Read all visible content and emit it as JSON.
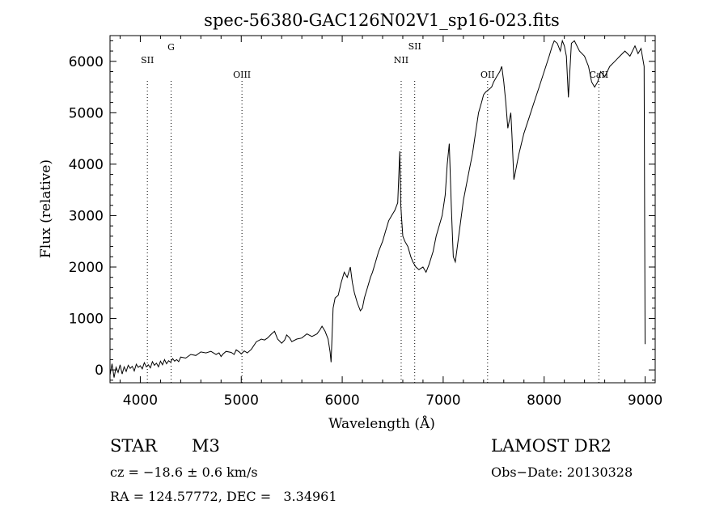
{
  "chart_data": {
    "type": "line",
    "title": "spec-56380-GAC126N02V1_sp16-023.fits",
    "xlabel": "Wavelength (Å)",
    "ylabel": "Flux (relative)",
    "xlim": [
      3700,
      9100
    ],
    "ylim": [
      -250,
      6500
    ],
    "xticks": [
      4000,
      5000,
      6000,
      7000,
      8000,
      9000
    ],
    "yticks": [
      0,
      1000,
      2000,
      3000,
      4000,
      5000,
      6000
    ],
    "grid": false,
    "line_markers": [
      {
        "label": "SII",
        "x": 4070
      },
      {
        "label": "G",
        "x": 4305
      },
      {
        "label": "OIII",
        "x": 5007
      },
      {
        "label": "NII",
        "x": 6584
      },
      {
        "label": "SII",
        "x": 6718
      },
      {
        "label": "OII",
        "x": 7440
      },
      {
        "label": "CaII",
        "x": 8542
      }
    ],
    "series": [
      {
        "x": [
          3700,
          3720,
          3740,
          3760,
          3780,
          3800,
          3820,
          3840,
          3860,
          3880,
          3900,
          3920,
          3940,
          3960,
          3980,
          4000,
          4020,
          4040,
          4060,
          4080,
          4100,
          4120,
          4140,
          4160,
          4180,
          4200,
          4220,
          4240,
          4260,
          4280,
          4300,
          4320,
          4340,
          4360,
          4380,
          4400,
          4450,
          4500,
          4550,
          4600,
          4650,
          4700,
          4750,
          4780,
          4800,
          4820,
          4850,
          4900,
          4930,
          4950,
          4980,
          5000,
          5030,
          5060,
          5100,
          5150,
          5200,
          5230,
          5260,
          5300,
          5330,
          5360,
          5400,
          5430,
          5450,
          5480,
          5500,
          5550,
          5600,
          5650,
          5700,
          5750,
          5780,
          5800,
          5830,
          5860,
          5880,
          5890,
          5900,
          5910,
          5930,
          5960,
          5990,
          6020,
          6050,
          6080,
          6100,
          6120,
          6150,
          6180,
          6200,
          6220,
          6250,
          6280,
          6300,
          6330,
          6360,
          6400,
          6430,
          6460,
          6490,
          6520,
          6550,
          6570,
          6580,
          6590,
          6600,
          6620,
          6650,
          6680,
          6700,
          6730,
          6760,
          6800,
          6830,
          6860,
          6900,
          6930,
          6960,
          6990,
          7020,
          7040,
          7060,
          7080,
          7090,
          7100,
          7120,
          7140,
          7160,
          7180,
          7200,
          7230,
          7260,
          7290,
          7320,
          7350,
          7380,
          7400,
          7420,
          7450,
          7480,
          7500,
          7530,
          7560,
          7580,
          7600,
          7620,
          7640,
          7660,
          7670,
          7680,
          7700,
          7720,
          7750,
          7800,
          7850,
          7900,
          7950,
          8000,
          8050,
          8080,
          8100,
          8130,
          8160,
          8180,
          8200,
          8220,
          8240,
          8270,
          8300,
          8350,
          8400,
          8440,
          8470,
          8500,
          8530,
          8560,
          8600,
          8650,
          8700,
          8750,
          8800,
          8850,
          8900,
          8930,
          8960,
          8990,
          9000
        ],
        "y": [
          -100,
          120,
          -150,
          50,
          -50,
          100,
          -80,
          60,
          -30,
          90,
          30,
          70,
          -20,
          110,
          50,
          80,
          20,
          140,
          60,
          100,
          40,
          160,
          90,
          130,
          60,
          170,
          100,
          200,
          120,
          180,
          150,
          220,
          170,
          200,
          160,
          250,
          230,
          300,
          280,
          350,
          330,
          360,
          300,
          330,
          260,
          310,
          360,
          340,
          300,
          390,
          350,
          310,
          370,
          330,
          400,
          550,
          600,
          580,
          620,
          700,
          750,
          600,
          520,
          580,
          680,
          620,
          550,
          600,
          620,
          700,
          650,
          700,
          780,
          850,
          750,
          600,
          350,
          150,
          700,
          1200,
          1400,
          1450,
          1700,
          1900,
          1800,
          2000,
          1700,
          1500,
          1300,
          1150,
          1200,
          1400,
          1600,
          1800,
          1900,
          2100,
          2300,
          2500,
          2700,
          2900,
          3000,
          3100,
          3250,
          4250,
          3200,
          2900,
          2600,
          2500,
          2400,
          2200,
          2100,
          2000,
          1950,
          2000,
          1900,
          2050,
          2300,
          2600,
          2800,
          3000,
          3400,
          4000,
          4400,
          3200,
          2700,
          2200,
          2100,
          2400,
          2700,
          3000,
          3300,
          3600,
          3900,
          4200,
          4600,
          5000,
          5200,
          5350,
          5400,
          5450,
          5500,
          5600,
          5700,
          5800,
          5900,
          5600,
          5200,
          4700,
          4900,
          5000,
          4600,
          3700,
          3900,
          4200,
          4600,
          4900,
          5200,
          5500,
          5800,
          6100,
          6300,
          6400,
          6350,
          6200,
          6400,
          6300,
          6100,
          5300,
          6350,
          6400,
          6200,
          6100,
          5900,
          5600,
          5500,
          5600,
          5800,
          5700,
          5900,
          6000,
          6100,
          6200,
          6100,
          6300,
          6150,
          6250,
          5900,
          500
        ]
      }
    ]
  },
  "info": {
    "class_label": "STAR",
    "subclass": "M3",
    "survey": "LAMOST DR2",
    "cz": "cz = −18.6 ± 0.6 km/s",
    "obs_date": "Obs−Date: 20130328",
    "radec": "RA = 124.57772, DEC =   3.34961"
  }
}
